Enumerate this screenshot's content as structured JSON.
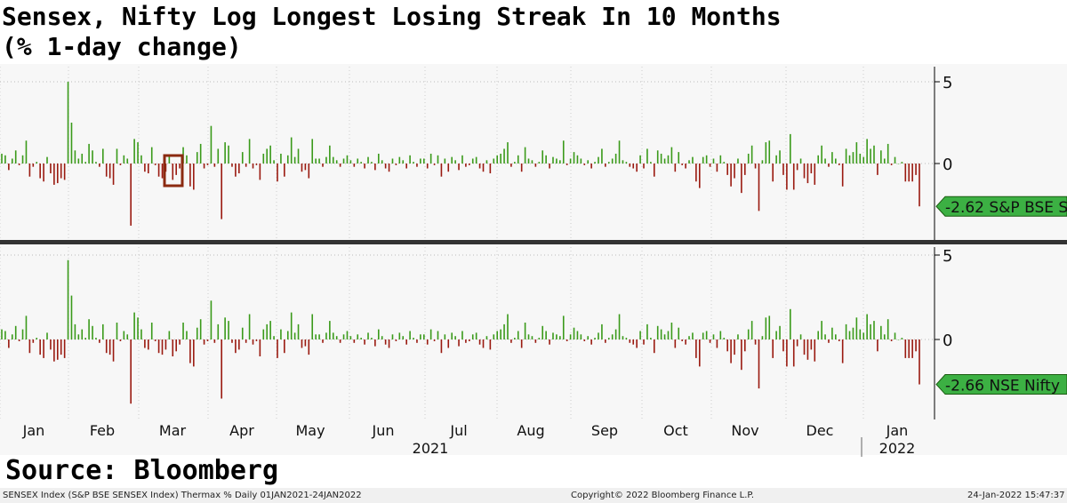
{
  "title_line1": "Sensex, Nifty Log Longest Losing Streak In 10 Months",
  "title_line2": "(% 1-day change)",
  "source": "Source: Bloomberg",
  "footer": {
    "left": "SENSEX Index (S&P BSE SENSEX Index) Thermax %  Daily 01JAN2021-24JAN2022",
    "center": "Copyright© 2022 Bloomberg Finance L.P.",
    "right": "24-Jan-2022 15:47:37"
  },
  "colors": {
    "up": "#3a9a1a",
    "down": "#9a1a10",
    "label_bg": "#3cb043",
    "highlight": "#8b2a10"
  },
  "chart_data": [
    {
      "type": "bar",
      "name": "S&P BSE Sensex",
      "ylabel": "% 1-day change",
      "yticks": [
        "5",
        "0"
      ],
      "ylim": [
        -4.5,
        5.5
      ],
      "last_label": "-2.62 S&P BSE S",
      "values": [
        0.6,
        0.5,
        -0.4,
        0.3,
        0.8,
        -0.1,
        0.5,
        1.4,
        -0.8,
        -0.2,
        0.1,
        -0.9,
        -1.1,
        0.4,
        -0.6,
        -1.3,
        -1.2,
        -0.9,
        -1.0,
        5.0,
        2.5,
        0.8,
        0.3,
        0.6,
        0.1,
        1.2,
        0.8,
        0.1,
        -0.2,
        0.9,
        -0.8,
        -0.9,
        -1.3,
        0.9,
        -0.1,
        0.5,
        0.3,
        -3.8,
        1.5,
        1.3,
        0.5,
        -0.5,
        -0.6,
        1.0,
        -0.1,
        -0.8,
        -0.9,
        -0.5,
        0.5,
        -1.0,
        -0.7,
        -0.3,
        1.0,
        0.5,
        -1.4,
        -1.6,
        0.7,
        1.2,
        -0.3,
        -0.1,
        2.3,
        -0.2,
        0.9,
        -3.4,
        1.3,
        1.1,
        -0.2,
        -0.8,
        -0.6,
        0.7,
        -0.2,
        1.5,
        -0.3,
        -0.1,
        -1.0,
        0.6,
        0.9,
        1.1,
        0.2,
        -1.1,
        0.6,
        -0.8,
        0.5,
        1.6,
        0.4,
        0.9,
        -0.5,
        -0.4,
        -0.9,
        1.5,
        0.3,
        0.3,
        -0.2,
        0.4,
        1.1,
        0.4,
        0.2,
        -0.2,
        0.3,
        0.5,
        0.2,
        -0.2,
        0.3,
        0.1,
        -0.3,
        0.4,
        0.1,
        -0.4,
        0.6,
        0.2,
        -0.3,
        -0.5,
        0.3,
        -0.1,
        0.4,
        0.2,
        -0.3,
        0.5,
        0.1,
        -0.2,
        0.3,
        0.3,
        -0.3,
        0.6,
        -0.1,
        0.5,
        -0.8,
        0.3,
        -0.5,
        0.4,
        0.2,
        -0.4,
        0.5,
        -0.2,
        -0.1,
        0.3,
        0.4,
        -0.3,
        -0.5,
        0.2,
        -0.6,
        0.3,
        0.5,
        0.6,
        0.9,
        1.3,
        -0.2,
        0.1,
        0.5,
        -0.5,
        1.0,
        0.3,
        0.2,
        -0.2,
        0.1,
        0.8,
        0.5,
        -0.3,
        0.4,
        0.3,
        0.2,
        1.4,
        -0.1,
        0.3,
        0.7,
        0.5,
        0.3,
        -0.1,
        0.2,
        -0.3,
        0.1,
        0.4,
        0.9,
        -0.2,
        0.1,
        0.3,
        0.6,
        1.4,
        0.2,
        0.1,
        -0.2,
        -0.3,
        -0.5,
        0.5,
        -0.3,
        0.9,
        0.1,
        -0.8,
        0.8,
        0.6,
        0.3,
        0.5,
        1.0,
        -0.5,
        0.7,
        -0.1,
        -0.3,
        0.2,
        0.4,
        -1.1,
        -1.5,
        0.4,
        0.5,
        -0.2,
        0.3,
        -0.5,
        0.5,
        0.1,
        -0.7,
        -1.4,
        -0.9,
        0.3,
        -1.8,
        -0.7,
        0.6,
        1.1,
        -0.3,
        -2.9,
        0.2,
        1.3,
        1.4,
        -1.1,
        0.5,
        0.8,
        -0.7,
        -1.6,
        1.8,
        -1.6,
        -0.4,
        0.3,
        -0.9,
        -1.2,
        -0.6,
        -1.3,
        0.5,
        1.1,
        0.3,
        -0.2,
        0.7,
        0.3,
        -0.1,
        -1.4,
        0.9,
        0.5,
        0.7,
        1.3,
        0.6,
        0.4,
        1.5,
        0.9,
        1.1,
        -0.7,
        0.8,
        0.3,
        1.2,
        -0.1,
        0.4,
        0.0,
        0.1,
        -1.1,
        -1.1,
        -1.1,
        -0.7,
        -2.62
      ]
    },
    {
      "type": "bar",
      "name": "NSE Nifty",
      "ylabel": "% 1-day change",
      "yticks": [
        "5",
        "0"
      ],
      "ylim": [
        -4.5,
        5.5
      ],
      "last_label": "-2.66 NSE Nifty",
      "values": [
        0.6,
        0.5,
        -0.5,
        0.3,
        0.8,
        -0.1,
        0.6,
        1.4,
        -0.8,
        -0.2,
        0.1,
        -0.9,
        -1.1,
        0.4,
        -0.6,
        -1.3,
        -1.2,
        -0.9,
        -1.1,
        4.7,
        2.6,
        0.9,
        0.3,
        0.6,
        0.1,
        1.2,
        0.8,
        0.1,
        -0.2,
        0.9,
        -0.8,
        -0.9,
        -1.3,
        1.0,
        -0.1,
        0.5,
        0.3,
        -3.8,
        1.6,
        1.3,
        0.6,
        -0.5,
        -0.6,
        1.0,
        -0.1,
        -0.8,
        -0.9,
        -0.6,
        0.5,
        -1.0,
        -0.7,
        -0.3,
        1.0,
        0.5,
        -1.4,
        -1.6,
        0.7,
        1.2,
        -0.3,
        -0.1,
        2.3,
        -0.2,
        0.9,
        -3.5,
        1.3,
        1.1,
        -0.2,
        -0.8,
        -0.6,
        0.7,
        -0.2,
        1.5,
        -0.3,
        -0.1,
        -1.0,
        0.6,
        0.9,
        1.1,
        0.2,
        -1.1,
        0.6,
        -0.8,
        0.5,
        1.6,
        0.4,
        0.9,
        -0.5,
        -0.4,
        -0.9,
        1.5,
        0.3,
        0.3,
        -0.2,
        0.4,
        1.1,
        0.4,
        0.2,
        -0.2,
        0.3,
        0.5,
        0.2,
        -0.2,
        0.3,
        0.1,
        -0.3,
        0.4,
        0.1,
        -0.4,
        0.6,
        0.2,
        -0.3,
        -0.5,
        0.3,
        -0.1,
        0.4,
        0.2,
        -0.3,
        0.5,
        0.1,
        -0.2,
        0.3,
        0.3,
        -0.3,
        0.6,
        -0.1,
        0.5,
        -0.8,
        0.3,
        -0.5,
        0.4,
        0.2,
        -0.4,
        0.5,
        -0.2,
        -0.1,
        0.3,
        0.4,
        -0.3,
        -0.5,
        0.2,
        -0.6,
        0.3,
        0.5,
        0.6,
        0.9,
        1.5,
        -0.2,
        0.1,
        0.5,
        -0.5,
        1.0,
        0.3,
        0.2,
        -0.2,
        0.1,
        0.8,
        0.5,
        -0.3,
        0.4,
        0.3,
        0.2,
        1.4,
        -0.1,
        0.3,
        0.7,
        0.5,
        0.3,
        -0.1,
        0.2,
        -0.3,
        0.1,
        0.4,
        0.9,
        -0.2,
        0.1,
        0.3,
        0.6,
        1.5,
        0.2,
        0.1,
        -0.2,
        -0.3,
        -0.5,
        0.5,
        -0.3,
        0.9,
        0.1,
        -0.8,
        0.8,
        0.6,
        0.3,
        0.5,
        1.0,
        -0.5,
        0.7,
        -0.1,
        -0.3,
        0.2,
        0.4,
        -1.1,
        -1.6,
        0.4,
        0.5,
        -0.2,
        0.3,
        -0.5,
        0.5,
        0.1,
        -0.7,
        -1.4,
        -0.9,
        0.3,
        -1.8,
        -0.7,
        0.6,
        1.1,
        -0.3,
        -2.9,
        0.2,
        1.3,
        1.4,
        -1.1,
        0.5,
        0.8,
        -0.7,
        -1.6,
        1.8,
        -1.6,
        -0.4,
        0.3,
        -0.9,
        -1.2,
        -0.6,
        -1.3,
        0.5,
        1.1,
        0.3,
        -0.2,
        0.7,
        0.3,
        -0.1,
        -1.4,
        0.9,
        0.5,
        0.7,
        1.3,
        0.6,
        0.4,
        1.5,
        0.9,
        1.1,
        -0.7,
        0.8,
        0.3,
        1.2,
        -0.1,
        0.4,
        0.0,
        0.1,
        -1.1,
        -1.1,
        -1.1,
        -0.7,
        -2.66
      ]
    }
  ],
  "x_axis": {
    "months": [
      "Jan",
      "Feb",
      "Mar",
      "Apr",
      "May",
      "Jun",
      "Jul",
      "Aug",
      "Sep",
      "Oct",
      "Nov",
      "Dec",
      "Jan"
    ],
    "years": [
      "2021",
      "2022"
    ]
  }
}
